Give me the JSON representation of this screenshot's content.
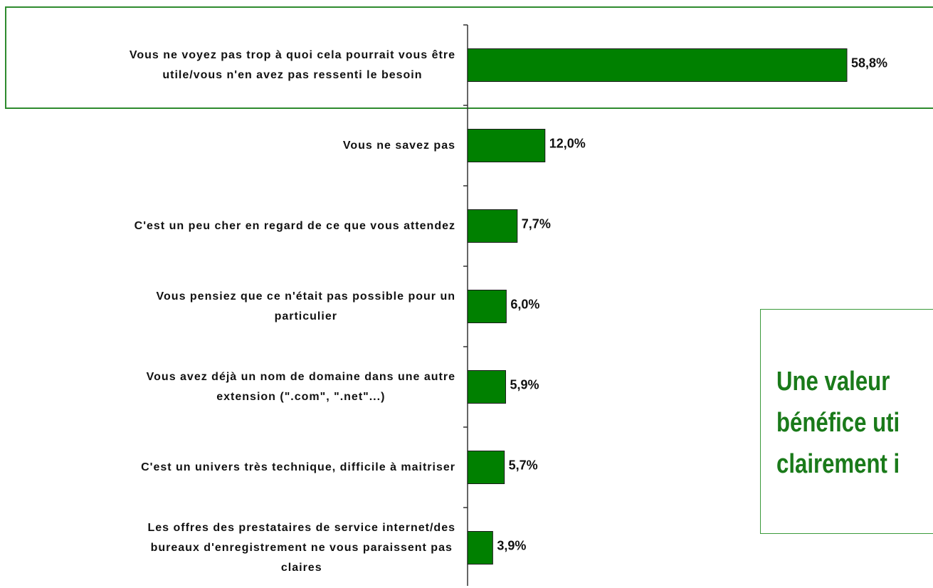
{
  "chart_data": {
    "type": "bar",
    "orientation": "horizontal",
    "categories": [
      "Vous ne voyez pas trop à quoi cela pourrait vous être\nutile/vous n'en avez pas ressenti le besoin",
      "Vous ne savez pas",
      "C'est un peu cher en regard de ce que vous attendez",
      "Vous pensiez que ce n'était pas possible pour un\nparticulier",
      "Vous avez déjà un nom de domaine dans une autre\nextension (\".com\", \".net\"...)",
      "C'est un univers très technique, difficile à maitriser",
      "Les offres des prestataires de service internet/des\nbureaux d'enregistrement ne vous paraissent pas\nclaires"
    ],
    "values": [
      58.8,
      12.0,
      7.7,
      6.0,
      5.9,
      5.7,
      3.9
    ],
    "value_labels": [
      "58,8%",
      "12,0%",
      "7,7%",
      "6,0%",
      "5,9%",
      "5,7%",
      "3,9%"
    ],
    "color": "#008000",
    "annotation": [
      "Une valeur",
      "bénéfice uti",
      "clairement i"
    ]
  }
}
